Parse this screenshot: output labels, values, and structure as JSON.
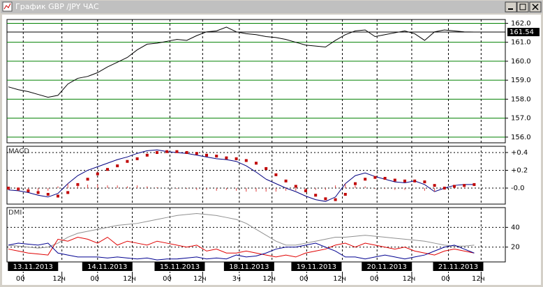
{
  "window_title": "График GBP /JPY ЧАС",
  "chart_data": [
    {
      "type": "line",
      "xlim": [
        0,
        50
      ],
      "ylim": [
        155.7,
        162.2
      ],
      "yticks": [
        {
          "value": 162,
          "label": "162.0"
        },
        {
          "value": 161,
          "label": "161.0"
        },
        {
          "value": 160,
          "label": "160.0"
        },
        {
          "value": 159,
          "label": "159.0"
        },
        {
          "value": 158,
          "label": "158.0"
        },
        {
          "value": 157,
          "label": "157.0"
        },
        {
          "value": 156,
          "label": "156.0"
        }
      ],
      "grid_color": "#008000",
      "last_value": 161.54,
      "series": [
        {
          "color": "#000000",
          "values": [
            158.65,
            158.5,
            158.4,
            158.25,
            158.1,
            158.2,
            158.8,
            159.1,
            159.2,
            159.4,
            159.7,
            159.95,
            160.2,
            160.6,
            160.9,
            160.95,
            161.05,
            161.15,
            161.1,
            161.35,
            161.55,
            161.6,
            161.8,
            161.55,
            161.45,
            161.4,
            161.3,
            161.25,
            161.15,
            161.0,
            160.85,
            160.8,
            160.75,
            161.1,
            161.4,
            161.6,
            161.65,
            161.3,
            161.4,
            161.5,
            161.6,
            161.45,
            161.1,
            161.55,
            161.65,
            161.6,
            161.55,
            161.54
          ]
        }
      ]
    },
    {
      "type": "macd",
      "label": "MACD",
      "xlim": [
        0,
        50
      ],
      "ylim": [
        -0.18,
        0.47
      ],
      "yticks": [
        {
          "value": 0.4,
          "label": "+0.4"
        },
        {
          "value": 0.2,
          "label": "+0.2"
        },
        {
          "value": 0,
          "label": "-0.0"
        }
      ],
      "series": [
        {
          "color": "#000080",
          "style": "line",
          "values": [
            -0.02,
            -0.03,
            -0.05,
            -0.08,
            -0.1,
            -0.06,
            0.05,
            0.14,
            0.2,
            0.24,
            0.28,
            0.32,
            0.35,
            0.39,
            0.42,
            0.43,
            0.41,
            0.4,
            0.39,
            0.37,
            0.35,
            0.33,
            0.32,
            0.3,
            0.25,
            0.18,
            0.1,
            0.05,
            0.0,
            -0.04,
            -0.09,
            -0.13,
            -0.15,
            -0.1,
            0.05,
            0.14,
            0.17,
            0.13,
            0.1,
            0.07,
            0.06,
            0.08,
            0.04,
            -0.04,
            0.0,
            0.03,
            0.04,
            0.04
          ]
        },
        {
          "color": "#c00000",
          "style": "dots",
          "values": [
            0.0,
            -0.01,
            -0.03,
            -0.05,
            -0.07,
            -0.09,
            -0.05,
            0.04,
            0.1,
            0.16,
            0.21,
            0.25,
            0.3,
            0.33,
            0.37,
            0.4,
            0.41,
            0.41,
            0.4,
            0.39,
            0.37,
            0.36,
            0.34,
            0.33,
            0.31,
            0.28,
            0.22,
            0.15,
            0.08,
            0.02,
            -0.03,
            -0.08,
            -0.12,
            -0.13,
            -0.07,
            0.05,
            0.1,
            0.12,
            0.11,
            0.09,
            0.08,
            0.08,
            0.07,
            0.03,
            0.0,
            0.02,
            0.03,
            0.04
          ]
        },
        {
          "color": "#e04040",
          "style": "bars",
          "values": [
            -0.02,
            -0.03,
            -0.03,
            -0.04,
            -0.03,
            0.02,
            0.05,
            0.04,
            0.04,
            0.04,
            0.03,
            0.03,
            0.02,
            0.03,
            0.02,
            0.01,
            0.0,
            -0.01,
            -0.01,
            -0.02,
            -0.02,
            -0.03,
            -0.02,
            -0.03,
            -0.04,
            -0.04,
            -0.04,
            -0.04,
            -0.03,
            -0.03,
            -0.03,
            -0.02,
            -0.02,
            0.03,
            0.05,
            0.03,
            0.02,
            -0.01,
            -0.01,
            -0.02,
            -0.02,
            0.0,
            -0.03,
            -0.04,
            0.0,
            0.01,
            0.01,
            0.0
          ]
        }
      ]
    },
    {
      "type": "line",
      "label": "DMI",
      "xlim": [
        0,
        50
      ],
      "ylim": [
        5,
        60
      ],
      "yticks": [
        40,
        20
      ],
      "series": [
        {
          "color": "#909090",
          "values": [
            22,
            21,
            20,
            19,
            20,
            24,
            30,
            34,
            36,
            38,
            40,
            42,
            43,
            44,
            46,
            48,
            50,
            52,
            53,
            54,
            53,
            52,
            50,
            48,
            44,
            38,
            32,
            26,
            22,
            22,
            24,
            26,
            28,
            30,
            30,
            31,
            32,
            31,
            30,
            29,
            28,
            27,
            26,
            24,
            22,
            21,
            21,
            22
          ]
        },
        {
          "color": "#e00000",
          "values": [
            18,
            16,
            14,
            13,
            12,
            28,
            26,
            30,
            28,
            24,
            30,
            22,
            26,
            24,
            22,
            26,
            24,
            22,
            20,
            22,
            16,
            18,
            14,
            14,
            16,
            14,
            12,
            10,
            12,
            10,
            14,
            16,
            18,
            22,
            24,
            20,
            24,
            22,
            20,
            18,
            20,
            16,
            14,
            12,
            16,
            18,
            16,
            14
          ]
        },
        {
          "color": "#000090",
          "values": [
            22,
            24,
            23,
            22,
            24,
            14,
            12,
            10,
            10,
            10,
            9,
            10,
            9,
            8,
            9,
            7,
            8,
            8,
            9,
            10,
            8,
            9,
            8,
            12,
            10,
            11,
            14,
            18,
            20,
            20,
            22,
            24,
            20,
            16,
            10,
            10,
            8,
            10,
            12,
            10,
            8,
            10,
            12,
            16,
            20,
            22,
            18,
            14
          ]
        }
      ]
    }
  ],
  "time_axis": {
    "xticks": [
      {
        "value": 1.5,
        "label": "00"
      },
      {
        "value": 5.4,
        "label": "12ч"
      },
      {
        "value": 9,
        "label": "00"
      },
      {
        "value": 12.5,
        "label": "12ч"
      },
      {
        "value": 16.3,
        "label": "00"
      },
      {
        "value": 19.6,
        "label": "12ч"
      },
      {
        "value": 23.3,
        "label": "3ч"
      },
      {
        "value": 26.6,
        "label": "12ч"
      },
      {
        "value": 30.1,
        "label": "00"
      },
      {
        "value": 33.7,
        "label": "12ч"
      },
      {
        "value": 37.2,
        "label": "00"
      },
      {
        "value": 40.7,
        "label": "12ч"
      },
      {
        "value": 44.4,
        "label": "00"
      },
      {
        "value": 47.7,
        "label": "12ч"
      }
    ],
    "dates": [
      "13.11.2013",
      "14.11.2013",
      "15.11.2013",
      "18.11.2013",
      "19.11.2013",
      "20.11.2013",
      "21.11.2013"
    ]
  }
}
